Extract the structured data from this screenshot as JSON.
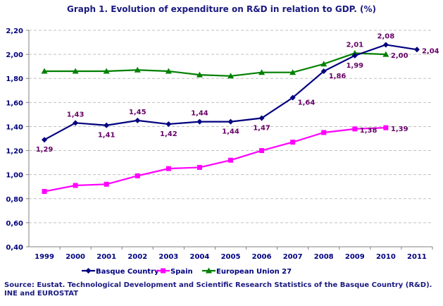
{
  "chart_data": {
    "type": "line",
    "title": "Graph 1. Evolution of expenditure on R&D in relation to GDP. (%)",
    "categories": [
      "1999",
      "2000",
      "2001",
      "2002",
      "2003",
      "2004",
      "2005",
      "2006",
      "2007",
      "2008",
      "2009",
      "2010",
      "2011"
    ],
    "ylim": [
      0.4,
      2.2
    ],
    "yticks": [
      "0,40",
      "0,60",
      "0,80",
      "1,00",
      "1,20",
      "1,40",
      "1,60",
      "1,80",
      "2,00",
      "2,20"
    ],
    "ytick_values": [
      0.4,
      0.6,
      0.8,
      1.0,
      1.2,
      1.4,
      1.6,
      1.8,
      2.0,
      2.2
    ],
    "grid": "horizontal dashed",
    "legend_placement": "bottom",
    "series": [
      {
        "name": "Basque Country",
        "color": "#000080",
        "marker": "diamond",
        "values": [
          1.29,
          1.43,
          1.41,
          1.45,
          1.42,
          1.44,
          1.44,
          1.47,
          1.64,
          1.86,
          1.99,
          2.08,
          2.04
        ],
        "labels": [
          "1,29",
          "1,43",
          "1,41",
          "1,45",
          "1,42",
          "1,44",
          "1,44",
          "1,47",
          "1,64",
          "1,86",
          "1,99",
          "2,08",
          "2,04"
        ],
        "label_side": [
          "below",
          "above",
          "below",
          "above",
          "below",
          "above",
          "below",
          "below",
          "right",
          "right",
          "below",
          "above",
          "right"
        ]
      },
      {
        "name": "Spain",
        "color": "#ff00ff",
        "marker": "square",
        "values": [
          0.86,
          0.91,
          0.92,
          0.99,
          1.05,
          1.06,
          1.12,
          1.2,
          1.27,
          1.35,
          1.38,
          1.39,
          null
        ],
        "labels": [
          null,
          null,
          null,
          null,
          null,
          null,
          null,
          null,
          null,
          null,
          "1,38",
          "1,39",
          null
        ],
        "label_side": [
          null,
          null,
          null,
          null,
          null,
          null,
          null,
          null,
          null,
          null,
          "right",
          "right",
          null
        ]
      },
      {
        "name": "European Union 27",
        "color": "#008000",
        "marker": "triangle",
        "values": [
          1.86,
          1.86,
          1.86,
          1.87,
          1.86,
          1.83,
          1.82,
          1.85,
          1.85,
          1.92,
          2.01,
          2.0,
          null
        ],
        "labels": [
          null,
          null,
          null,
          null,
          null,
          null,
          null,
          null,
          null,
          null,
          "2,01",
          "2,00",
          null
        ],
        "label_side": [
          null,
          null,
          null,
          null,
          null,
          null,
          null,
          null,
          null,
          null,
          "above",
          "right",
          null
        ]
      }
    ],
    "label_color": "#660066",
    "axis_text_color": "#000080",
    "source": "Source: Eustat. Technological Development and Scientific Research Statistics of the Basque Country (R&D). INE and EUROSTAT"
  }
}
